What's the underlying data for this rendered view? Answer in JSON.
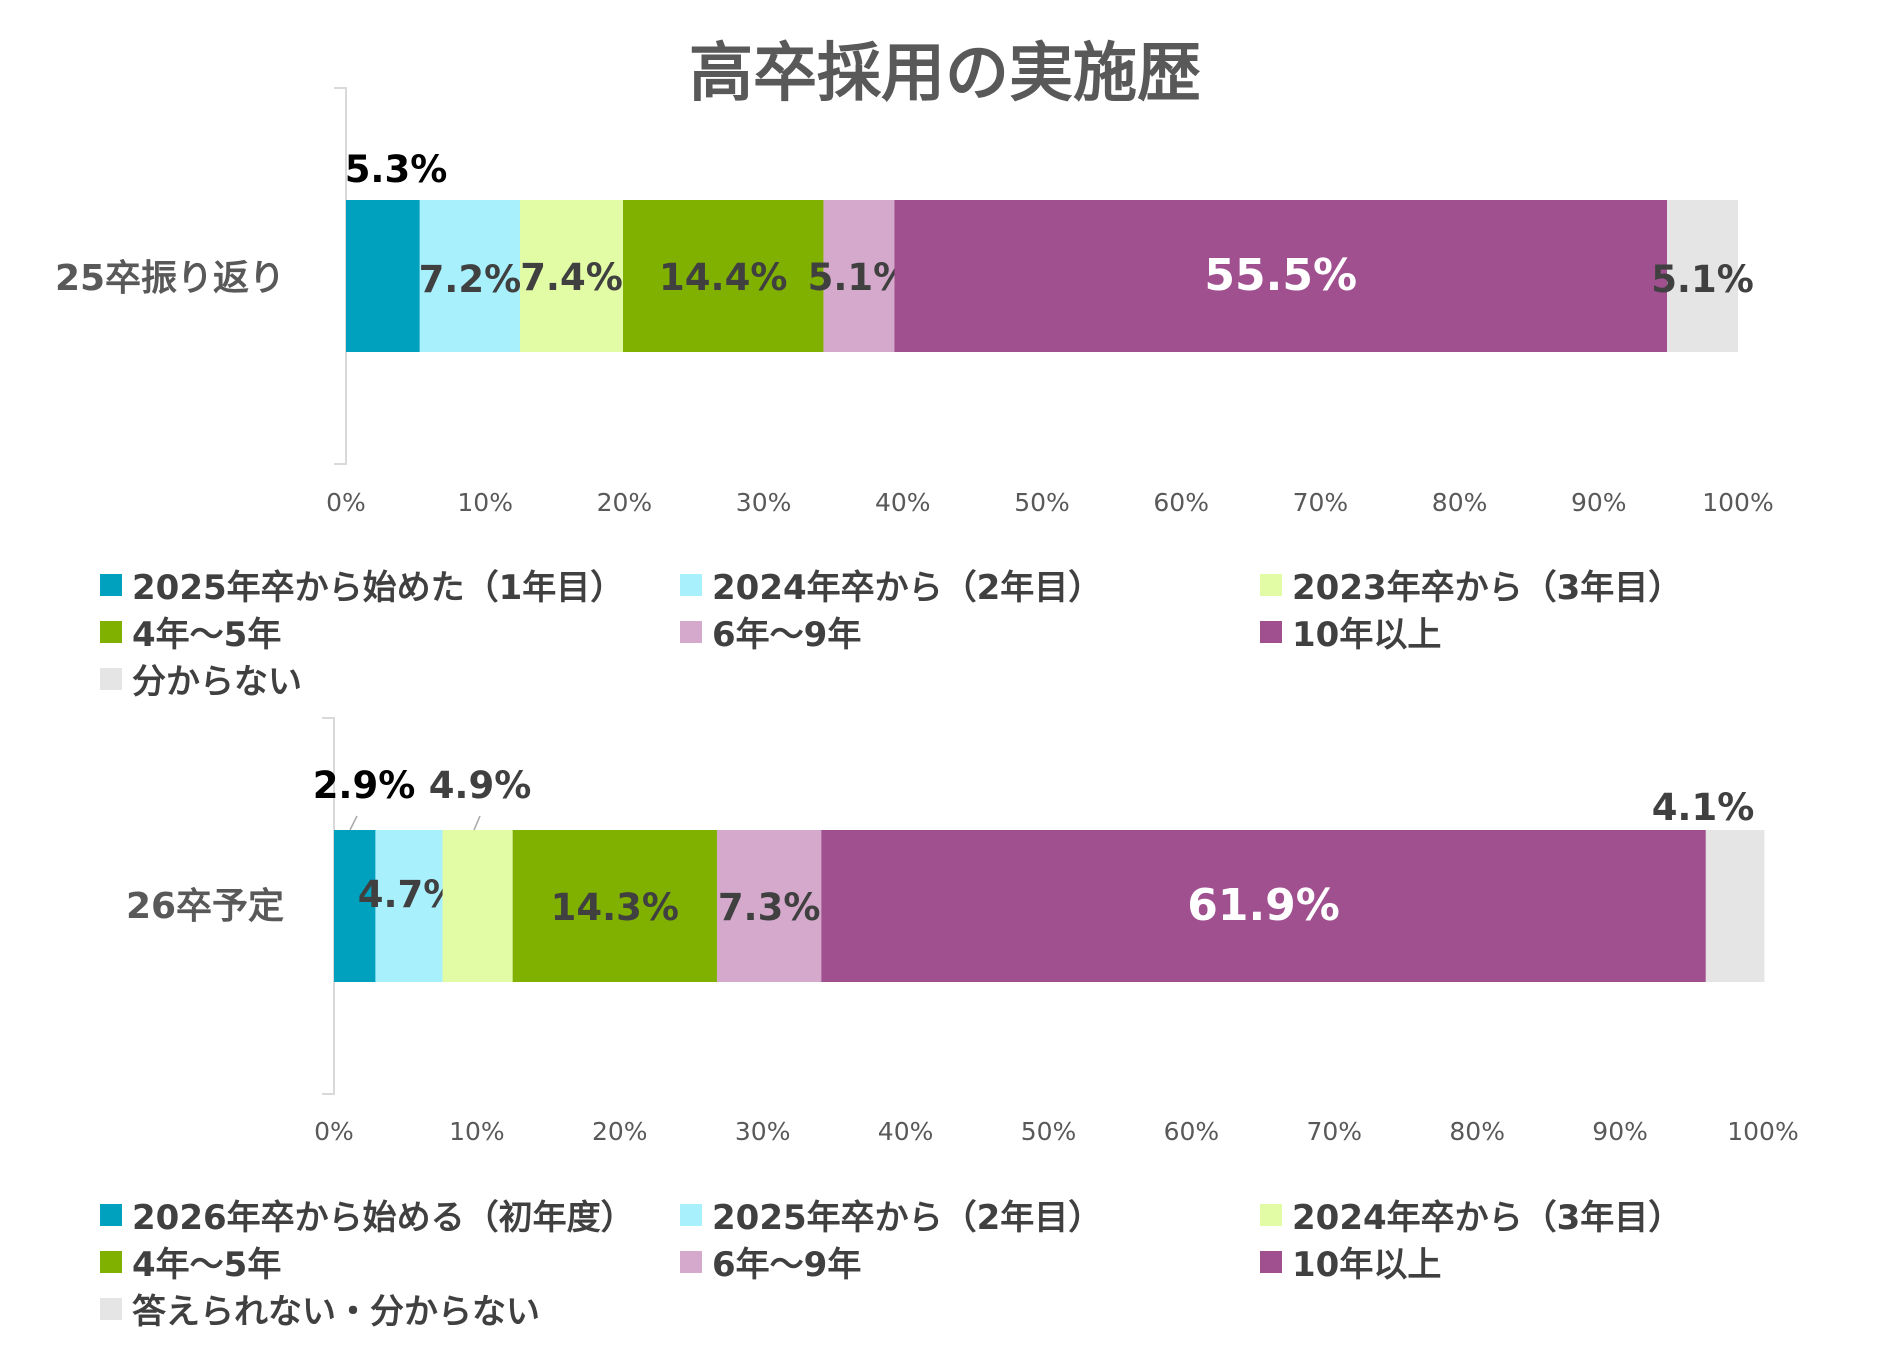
{
  "title": "高卒採用の実施歴",
  "chart_data": [
    {
      "type": "bar",
      "orientation": "horizontal",
      "stacked": "100%",
      "category": "25卒振り返り",
      "xlim": [
        0,
        100
      ],
      "x_ticks": [
        "0%",
        "10%",
        "20%",
        "30%",
        "40%",
        "50%",
        "60%",
        "70%",
        "80%",
        "90%",
        "100%"
      ],
      "series": [
        {
          "name": "2025年卒から始めた（1年目）",
          "value": 5.3,
          "label": "5.3%",
          "color": "#00A0BF"
        },
        {
          "name": "2024年卒から（2年目）",
          "value": 7.2,
          "label": "7.2%",
          "color": "#A8F0FC"
        },
        {
          "name": "2023年卒から（3年目）",
          "value": 7.4,
          "label": "7.4%",
          "color": "#E2FCA6"
        },
        {
          "name": "4年～5年",
          "value": 14.4,
          "label": "14.4%",
          "color": "#80B000"
        },
        {
          "name": "6年～9年",
          "value": 5.1,
          "label": "5.1%",
          "color": "#D4A9CC"
        },
        {
          "name": "10年以上",
          "value": 55.5,
          "label": "55.5%",
          "color": "#A04F8F"
        },
        {
          "name": "分からない",
          "value": 5.1,
          "label": "5.1%",
          "color": "#E5E5E5"
        }
      ]
    },
    {
      "type": "bar",
      "orientation": "horizontal",
      "stacked": "100%",
      "category": "26卒予定",
      "xlim": [
        0,
        100
      ],
      "x_ticks": [
        "0%",
        "10%",
        "20%",
        "30%",
        "40%",
        "50%",
        "60%",
        "70%",
        "80%",
        "90%",
        "100%"
      ],
      "series": [
        {
          "name": "2026年卒から始める（初年度）",
          "value": 2.9,
          "label": "2.9%",
          "color": "#00A0BF"
        },
        {
          "name": "2025年卒から（2年目）",
          "value": 4.7,
          "label": "4.7%",
          "color": "#A8F0FC"
        },
        {
          "name": "2024年卒から（3年目）",
          "value": 4.9,
          "label": "4.9%",
          "color": "#E2FCA6"
        },
        {
          "name": "4年～5年",
          "value": 14.3,
          "label": "14.3%",
          "color": "#80B000"
        },
        {
          "name": "6年～9年",
          "value": 7.3,
          "label": "7.3%",
          "color": "#D4A9CC"
        },
        {
          "name": "10年以上",
          "value": 61.9,
          "label": "61.9%",
          "color": "#A04F8F"
        },
        {
          "name": "答えられない・分からない",
          "value": 4.1,
          "label": "4.1%",
          "color": "#E5E5E5"
        }
      ]
    }
  ]
}
